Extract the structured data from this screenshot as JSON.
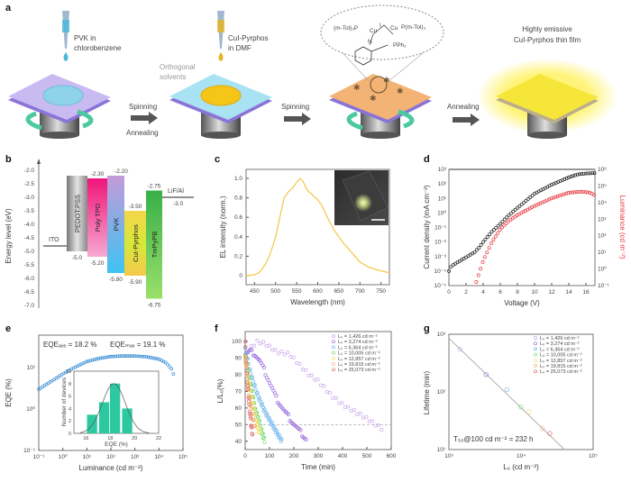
{
  "panel_labels": {
    "a": "a",
    "b": "b",
    "c": "c",
    "d": "d",
    "e": "e",
    "f": "f",
    "g": "g"
  },
  "panel_a": {
    "step1_solution": [
      "PVK in",
      "chlorobenzene"
    ],
    "step2_solution": [
      "CuI-Pyrphos",
      "in DMF"
    ],
    "orthogonal_note": [
      "Orthogonal",
      "solvents"
    ],
    "arrow1": [
      "Spinning",
      "Annealing"
    ],
    "arrow2": "Spinning",
    "arrow3": "Annealing",
    "result": [
      "Highly emissive",
      "CuI-Pyrphos thin film"
    ],
    "molecule": {
      "left_ligand": "(m-Tol)₃P",
      "right_ligand": "P(m-Tol)₃",
      "cu1": "Cu",
      "cu2": "Cu",
      "iodide": "I",
      "nitrogen": "N",
      "phosphine": "PPh₂"
    },
    "colors": {
      "pvk": "#8fd3e8",
      "cui": "#f5c518",
      "substrate": "#c8b8f0",
      "spin_arrow": "#4cc9a0",
      "film": "#f7e63a"
    }
  },
  "chart_data": [
    {
      "panel": "b",
      "type": "energy-level-diagram",
      "ylabel": "Energy level (eV)",
      "ylim": [
        -7.0,
        -2.0
      ],
      "yticks": [
        "-2.0",
        "-2.5",
        "-3.0",
        "-3.5",
        "-4.0",
        "-4.5",
        "-5.0",
        "-5.5",
        "-6.0",
        "-6.5",
        "-7.0"
      ],
      "electrodes": [
        {
          "name": "ITO",
          "level": -4.8
        },
        {
          "name": "LiF/Al",
          "level": -3.0,
          "label": "-3.0"
        }
      ],
      "layers": [
        {
          "name": "PEDOT:PSS",
          "top": -2.2,
          "bottom": -5.0,
          "top_label": "",
          "bottom_label": "-5.0",
          "color": "#9a9a9a"
        },
        {
          "name": "Poly TPD",
          "top": -2.3,
          "bottom": -5.2,
          "top_label": "-2.30",
          "bottom_label": "-5.20",
          "color": "#f0559a"
        },
        {
          "name": "PVK",
          "top": -2.2,
          "bottom": -5.8,
          "top_label": "-2.20",
          "bottom_label": "-5.80",
          "color": "#8f9fe6"
        },
        {
          "name": "CuI-Pyrphos",
          "top": -3.5,
          "bottom": -5.9,
          "top_label": "-3.50",
          "bottom_label": "-5.90",
          "color": "#e8d84a"
        },
        {
          "name": "TmPyPB",
          "top": -2.75,
          "bottom": -6.75,
          "top_label": "-2.75",
          "bottom_label": "-6.75",
          "color": "#4ec24e"
        }
      ]
    },
    {
      "panel": "c",
      "type": "line",
      "xlabel": "Wavelength (nm)",
      "ylabel": "EL intensity (norm.)",
      "xlim": [
        430,
        770
      ],
      "ylim": [
        -0.05,
        1.1
      ],
      "xticks": [
        "450",
        "500",
        "550",
        "600",
        "650",
        "700",
        "750"
      ],
      "yticks": [
        "0",
        "0.2",
        "0.4",
        "0.6",
        "0.8",
        "1.0"
      ],
      "color": "#f2c744",
      "x": [
        430,
        450,
        460,
        470,
        480,
        490,
        500,
        510,
        520,
        530,
        540,
        550,
        558,
        565,
        575,
        590,
        600,
        610,
        625,
        640,
        660,
        680,
        700,
        720,
        740,
        770
      ],
      "y": [
        0,
        0.01,
        0.03,
        0.08,
        0.15,
        0.26,
        0.4,
        0.6,
        0.8,
        0.86,
        0.9,
        0.96,
        1.0,
        0.97,
        0.88,
        0.82,
        0.78,
        0.72,
        0.58,
        0.46,
        0.34,
        0.24,
        0.14,
        0.09,
        0.06,
        0.03
      ],
      "inset": "device-photo"
    },
    {
      "panel": "d",
      "type": "scatter",
      "xlabel": "Voltage (V)",
      "ylabel": "Current density (mA cm⁻²)",
      "y2label": "Luminance (cd m⁻²)",
      "xlim": [
        0,
        17
      ],
      "ylim_log10": [
        -5,
        3
      ],
      "y2lim_log10": [
        -1,
        6
      ],
      "xticks": [
        "0",
        "2",
        "4",
        "6",
        "8",
        "10",
        "12",
        "14",
        "16"
      ],
      "yticks": [
        "10³",
        "10²",
        "10¹",
        "10⁰",
        "10⁻¹",
        "10⁻²",
        "10⁻³",
        "10⁻⁴",
        "10⁻⁵"
      ],
      "y2ticks": [
        "10⁶",
        "10⁵",
        "10⁴",
        "10³",
        "10²",
        "10¹",
        "10⁰",
        "10⁻¹"
      ],
      "series": [
        {
          "axis": "left",
          "color": "#222222",
          "x": [
            0,
            0.3,
            1,
            2,
            3,
            3.5,
            4,
            5,
            6,
            7,
            8,
            10,
            12,
            14,
            15,
            16,
            17
          ],
          "log10_y": [
            -4.0,
            -3.65,
            -3.4,
            -3.05,
            -2.7,
            -2.4,
            -2.0,
            -1.3,
            -0.75,
            -0.15,
            0.35,
            1.33,
            1.95,
            2.45,
            2.65,
            2.72,
            2.75
          ]
        },
        {
          "axis": "right",
          "color": "#e8383d",
          "x": [
            3.2,
            4,
            5,
            6,
            7,
            8,
            10,
            12,
            14,
            15.5,
            16.5,
            17
          ],
          "log10_y": [
            -0.78,
            0.5,
            1.6,
            2.4,
            2.9,
            3.25,
            3.8,
            4.26,
            4.6,
            4.66,
            4.6,
            4.44
          ]
        }
      ]
    },
    {
      "panel": "e",
      "type": "scatter",
      "xlabel": "Luminance (cd m⁻²)",
      "ylabel": "EQE (%)",
      "xlim_log10": [
        -1,
        5
      ],
      "ylim_log10": [
        -1,
        1.76
      ],
      "xticks": [
        "10⁻¹",
        "10⁰",
        "10¹",
        "10²",
        "10³",
        "10⁴",
        "10⁵"
      ],
      "yticks": [
        "10¹",
        "10⁰",
        "10⁻¹"
      ],
      "annotations": [
        "EQEₐᵥₑ = 18.2 %",
        "EQEₘₐₓ = 19.1 %"
      ],
      "color": "#3a8fd6",
      "x": [
        0.1,
        0.3,
        1,
        3,
        10,
        30,
        100,
        300,
        1000,
        3000,
        10000,
        20000,
        35000,
        45000
      ],
      "y": [
        3.0,
        4.5,
        7,
        10,
        14,
        16.5,
        18.5,
        19.1,
        19,
        18.3,
        16,
        13,
        9,
        5.5
      ]
    },
    {
      "panel": "e-inset",
      "type": "bar",
      "xlabel": "EQE (%)",
      "ylabel": "Number of devices",
      "xlim": [
        15,
        22
      ],
      "ylim": [
        0,
        10
      ],
      "xticks": [
        "16",
        "18",
        "20",
        "22"
      ],
      "yticks": [
        "0",
        "2",
        "4",
        "6",
        "8",
        "10"
      ],
      "color": "#2cc9a0",
      "bins": [
        16.5,
        17.5,
        18.4,
        19.4
      ],
      "values": [
        3,
        5,
        8,
        4
      ],
      "fit": "gaussian"
    },
    {
      "panel": "f",
      "type": "scatter",
      "xlabel": "Time (min)",
      "ylabel": "L/L₀(%)",
      "xlim": [
        0,
        600
      ],
      "ylim": [
        35,
        106
      ],
      "xticks": [
        "0",
        "100",
        "200",
        "300",
        "400",
        "500",
        "600"
      ],
      "yticks": [
        "100",
        "90",
        "80",
        "70",
        "60",
        "50",
        "40"
      ],
      "reference_line": 50,
      "series": [
        {
          "name": "L₀ = 1,426 cd m⁻²",
          "color": "#c6a6ec",
          "x": [
            0,
            20,
            50,
            80,
            130,
            180,
            220,
            260,
            300,
            350,
            400,
            450,
            500,
            560
          ],
          "y": [
            90,
            95,
            99,
            98,
            93,
            92,
            86,
            80,
            76,
            68,
            62,
            58,
            54,
            48
          ]
        },
        {
          "name": "L₀ = 3,274 cd m⁻²",
          "color": "#9b6fe0",
          "x": [
            0,
            20,
            40,
            60,
            80,
            100,
            130,
            160,
            200,
            250
          ],
          "y": [
            92,
            94,
            92,
            88,
            82,
            75,
            65,
            58,
            50,
            41
          ]
        },
        {
          "name": "L₀ = 6,364 cd m⁻²",
          "color": "#6fb6ec",
          "x": [
            0,
            20,
            50,
            80,
            110,
            150
          ],
          "y": [
            95,
            82,
            68,
            58,
            50,
            40
          ]
        },
        {
          "name": "L₀ = 10,005 cd m⁻²",
          "color": "#7fdc7a",
          "x": [
            0,
            20,
            40,
            60,
            80
          ],
          "y": [
            92,
            75,
            60,
            50,
            40
          ]
        },
        {
          "name": "L₀ = 12,857 cd m⁻²",
          "color": "#f0e26a",
          "x": [
            0,
            15,
            30,
            45,
            60
          ],
          "y": [
            90,
            74,
            62,
            52,
            45
          ]
        },
        {
          "name": "L₀ = 19,815 cd m⁻²",
          "color": "#f4b08a",
          "x": [
            0,
            12,
            25,
            40
          ],
          "y": [
            90,
            72,
            58,
            47
          ]
        },
        {
          "name": "L₀ = 25,073 cd m⁻²",
          "color": "#e06a6a",
          "x": [
            0,
            8,
            16,
            24,
            30
          ],
          "y": [
            100,
            78,
            62,
            50,
            44
          ]
        }
      ]
    },
    {
      "panel": "g",
      "type": "scatter",
      "xlabel": "L₀ (cd m⁻²)",
      "ylabel": "Lifetime (min)",
      "xlim_log10": [
        3,
        5
      ],
      "ylim_log10": [
        1,
        3
      ],
      "xticks": [
        "10³",
        "10⁴",
        "10⁵"
      ],
      "yticks": [
        "10³",
        "10²",
        "10¹"
      ],
      "annotation": "T₅₀@100 cd m⁻² = 232 h",
      "fit": {
        "x": [
          1000,
          40000
        ],
        "y": [
          850,
          10
        ]
      },
      "series": [
        {
          "name": "L₀ = 1,426 cd m⁻²",
          "color": "#c6a6ec",
          "x": 1426,
          "y": 550
        },
        {
          "name": "L₀ = 3,274 cd m⁻²",
          "color": "#9b6fe0",
          "x": 3274,
          "y": 200
        },
        {
          "name": "L₀ = 6,364 cd m⁻²",
          "color": "#6fb6ec",
          "x": 6364,
          "y": 110
        },
        {
          "name": "L₀ = 10,005 cd m⁻²",
          "color": "#7fdc7a",
          "x": 10005,
          "y": 55
        },
        {
          "name": "L₀ = 12,857 cd m⁻²",
          "color": "#f0e26a",
          "x": 12857,
          "y": 45
        },
        {
          "name": "L₀ = 19,815 cd m⁻²",
          "color": "#f4b08a",
          "x": 19815,
          "y": 23
        },
        {
          "name": "L₀ = 25,073 cd m⁻²",
          "color": "#e06a6a",
          "x": 25073,
          "y": 19
        }
      ]
    }
  ]
}
